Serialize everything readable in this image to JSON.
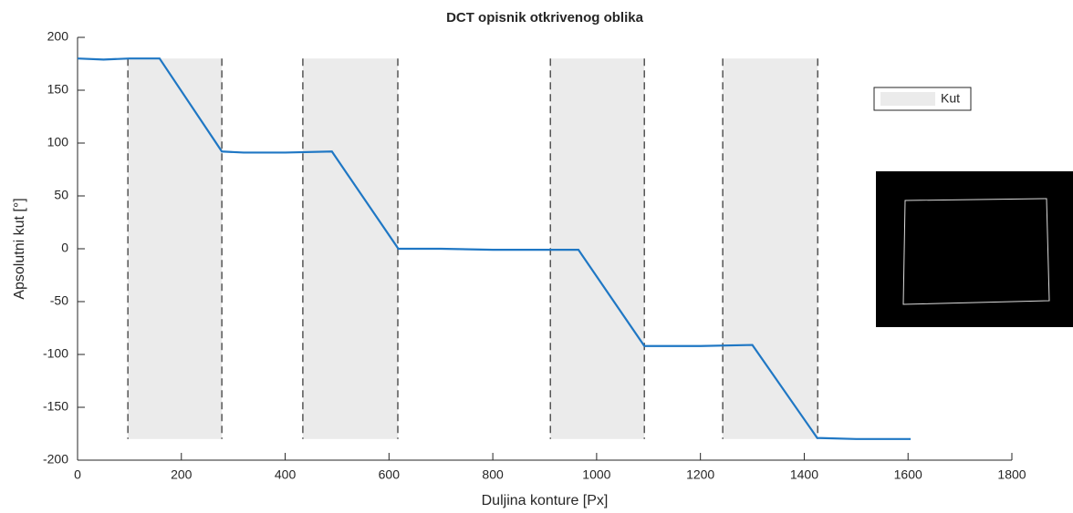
{
  "chart_data": {
    "type": "line",
    "title": "DCT opisnik otkrivenog oblika",
    "x_label": "Duljina konture [Px]",
    "y_label": "Apsolutni kut [°]",
    "xlim": [
      0,
      1800
    ],
    "ylim": [
      -200,
      200
    ],
    "xticks": [
      0,
      200,
      400,
      600,
      800,
      1000,
      1200,
      1400,
      1600,
      1800
    ],
    "yticks": [
      -200,
      -150,
      -100,
      -50,
      0,
      50,
      100,
      150,
      200
    ],
    "grid": false,
    "legend_position": "upper-right",
    "series": [
      {
        "color": "#1f77c4",
        "x": [
          0,
          50,
          100,
          158,
          278,
          320,
          400,
          490,
          618,
          700,
          800,
          900,
          965,
          1092,
          1200,
          1300,
          1425,
          1500,
          1605
        ],
        "values": [
          180,
          179,
          180,
          180,
          92,
          91,
          91,
          92,
          0,
          0,
          -1,
          -1,
          -1,
          -92,
          -92,
          -91,
          -179,
          -180,
          -180
        ]
      }
    ],
    "shaded_regions": {
      "name": "Kut",
      "color": "#ebebeb",
      "y_range": [
        -180,
        180
      ],
      "x_ranges": [
        [
          97,
          278
        ],
        [
          434,
          617
        ],
        [
          911,
          1092
        ],
        [
          1243,
          1426
        ]
      ]
    }
  }
}
